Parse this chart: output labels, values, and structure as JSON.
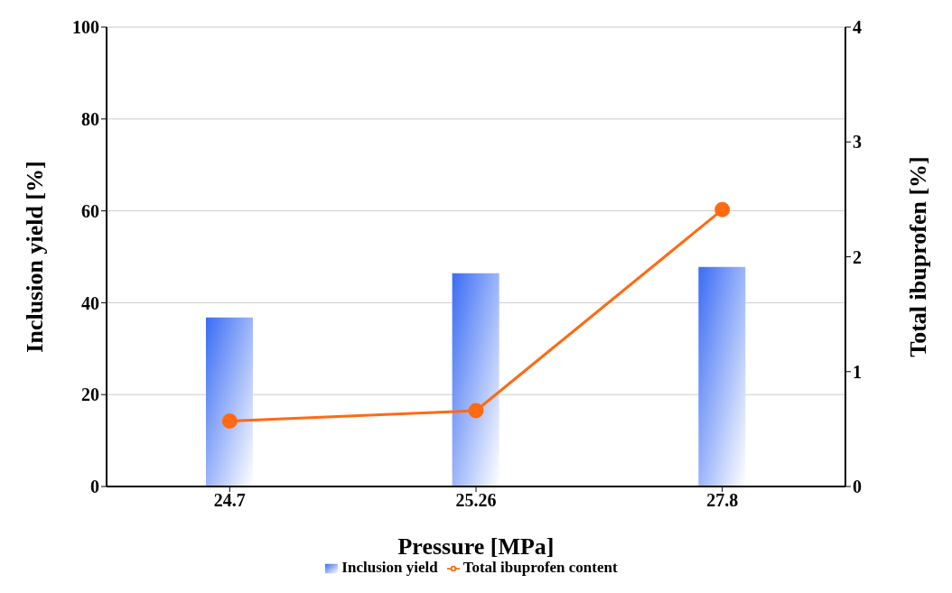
{
  "chart_data": {
    "type": "bar",
    "xlabel": "Pressure [MPa]",
    "ylabel": "Inclusion yield [%]",
    "y2label": "Total ibuprofen [%]",
    "categories": [
      "24.7",
      "25.26",
      "27.8"
    ],
    "series": [
      {
        "name": "Inclusion yield",
        "color": "#3a6cf4",
        "values": [
          36.8,
          46.4,
          47.8
        ]
      },
      {
        "name": "Total ibuprofen content",
        "type": "line",
        "axis": "y2",
        "color": "#ff6a13",
        "marker": "circle",
        "values": [
          0.57,
          0.66,
          2.41
        ]
      }
    ],
    "ylim": [
      0,
      100
    ],
    "yticks": [
      0,
      20,
      40,
      60,
      80,
      100
    ],
    "y2lim": [
      0,
      4
    ],
    "y2ticks": [
      0,
      1,
      2,
      3,
      4
    ],
    "grid": "y",
    "legend": "bottom"
  }
}
